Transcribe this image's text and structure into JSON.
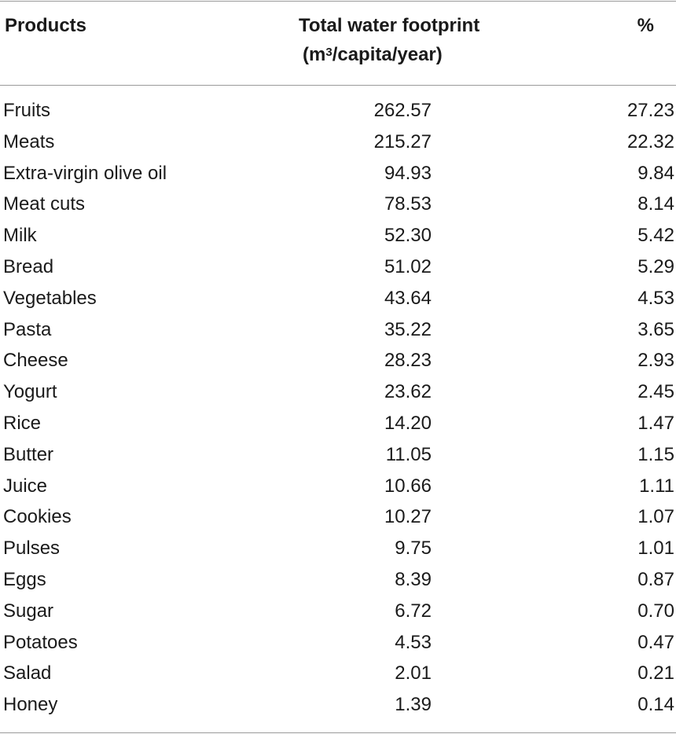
{
  "table": {
    "headers": {
      "products": "Products",
      "footprint_line1": "Total water footprint",
      "footprint_line2_pre": "(m",
      "footprint_line2_sup": "3",
      "footprint_line2_post": "/capita/year)",
      "percent": "%"
    },
    "rows": [
      {
        "product": "Fruits",
        "footprint": "262.57",
        "percent": "27.23"
      },
      {
        "product": "Meats",
        "footprint": "215.27",
        "percent": "22.32"
      },
      {
        "product": "Extra-virgin olive oil",
        "footprint": "94.93",
        "percent": "9.84"
      },
      {
        "product": "Meat cuts",
        "footprint": "78.53",
        "percent": "8.14"
      },
      {
        "product": "Milk",
        "footprint": "52.30",
        "percent": "5.42"
      },
      {
        "product": "Bread",
        "footprint": "51.02",
        "percent": "5.29"
      },
      {
        "product": "Vegetables",
        "footprint": "43.64",
        "percent": "4.53"
      },
      {
        "product": "Pasta",
        "footprint": "35.22",
        "percent": "3.65"
      },
      {
        "product": "Cheese",
        "footprint": "28.23",
        "percent": "2.93"
      },
      {
        "product": "Yogurt",
        "footprint": "23.62",
        "percent": "2.45"
      },
      {
        "product": "Rice",
        "footprint": "14.20",
        "percent": "1.47"
      },
      {
        "product": "Butter",
        "footprint": "11.05",
        "percent": "1.15"
      },
      {
        "product": "Juice",
        "footprint": "10.66",
        "percent": "1.11"
      },
      {
        "product": "Cookies",
        "footprint": "10.27",
        "percent": "1.07"
      },
      {
        "product": "Pulses",
        "footprint": "9.75",
        "percent": "1.01"
      },
      {
        "product": "Eggs",
        "footprint": "8.39",
        "percent": "0.87"
      },
      {
        "product": "Sugar",
        "footprint": "6.72",
        "percent": "0.70"
      },
      {
        "product": "Potatoes",
        "footprint": "4.53",
        "percent": "0.47"
      },
      {
        "product": "Salad",
        "footprint": "2.01",
        "percent": "0.21"
      },
      {
        "product": "Honey",
        "footprint": "1.39",
        "percent": "0.14"
      }
    ]
  }
}
